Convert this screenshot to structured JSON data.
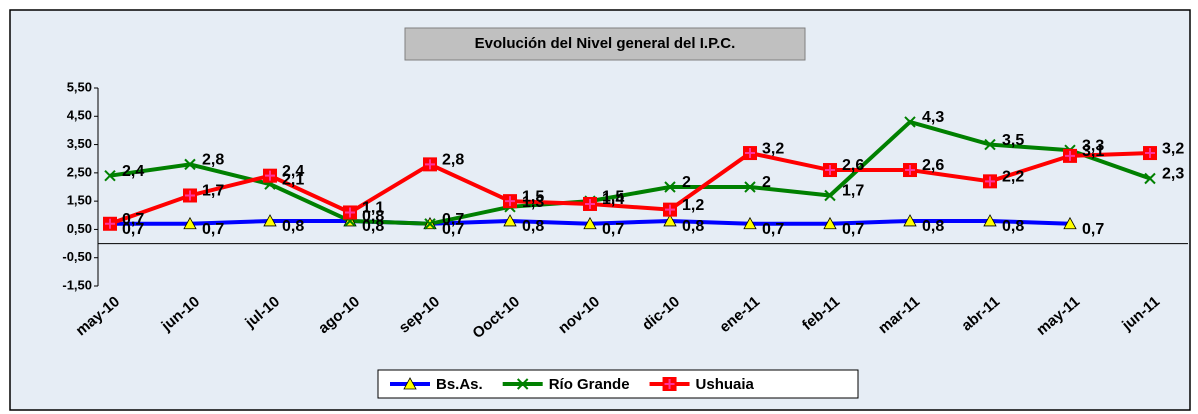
{
  "chart_data": {
    "type": "line",
    "title": "Evolución del Nivel general del I.P.C.",
    "categories": [
      "may-10",
      "jun-10",
      "jul-10",
      "ago-10",
      "sep-10",
      "Ooct-10",
      "nov-10",
      "dic-10",
      "ene-11",
      "feb-11",
      "mar-11",
      "abr-11",
      "may-11",
      "jun-11"
    ],
    "series": [
      {
        "name": "Bs.As.",
        "color": "#0000ff",
        "marker": "triangle",
        "marker_color": "#ffff00",
        "values": [
          0.7,
          0.7,
          0.8,
          0.8,
          0.7,
          0.8,
          0.7,
          0.8,
          0.7,
          0.7,
          0.8,
          0.8,
          0.7,
          null
        ],
        "value_labels": [
          "0,7",
          "0,7",
          "0,8",
          "0,8",
          "0,7",
          "0,8",
          "0,7",
          "0,8",
          "0,7",
          "0,7",
          "0,8",
          "0,8",
          "0,7",
          null
        ]
      },
      {
        "name": "Río Grande",
        "color": "#008000",
        "marker": "x",
        "marker_color": "#008000",
        "values": [
          2.4,
          2.8,
          2.1,
          0.8,
          0.7,
          1.3,
          1.5,
          2,
          2,
          1.7,
          4.3,
          3.5,
          3.3,
          2.3
        ],
        "value_labels": [
          "2,4",
          "2,8",
          "2,1",
          "0,8",
          "0,7",
          "1,3",
          "1,5",
          "2",
          "2",
          "1,7",
          "4,3",
          "3,5",
          "3,3",
          "2,3"
        ]
      },
      {
        "name": "Ushuaia",
        "color": "#ff0000",
        "marker": "square",
        "marker_color": "#ff3399",
        "values": [
          0.7,
          1.7,
          2.4,
          1.1,
          2.8,
          1.5,
          1.4,
          1.2,
          3.2,
          2.6,
          2.6,
          2.2,
          3.1,
          3.2
        ],
        "value_labels": [
          "0,7",
          "1,7",
          "2,4",
          "1,1",
          "2,8",
          "1,5",
          "1,4",
          "1,2",
          "3,2",
          "2,6",
          "2,6",
          "2,2",
          "3,1",
          "3,2"
        ]
      }
    ],
    "ylim": [
      -1.5,
      5.5
    ],
    "yticks": [
      {
        "value": 5.5,
        "label": "5,50"
      },
      {
        "value": 4.5,
        "label": "4,50"
      },
      {
        "value": 3.5,
        "label": "3,50"
      },
      {
        "value": 2.5,
        "label": "2,50"
      },
      {
        "value": 1.5,
        "label": "1,50"
      },
      {
        "value": 0.5,
        "label": "0,50"
      },
      {
        "value": -0.5,
        "label": "-0,50"
      },
      {
        "value": -1.5,
        "label": "-1,50"
      }
    ],
    "grid": false,
    "legend": "bottom"
  }
}
